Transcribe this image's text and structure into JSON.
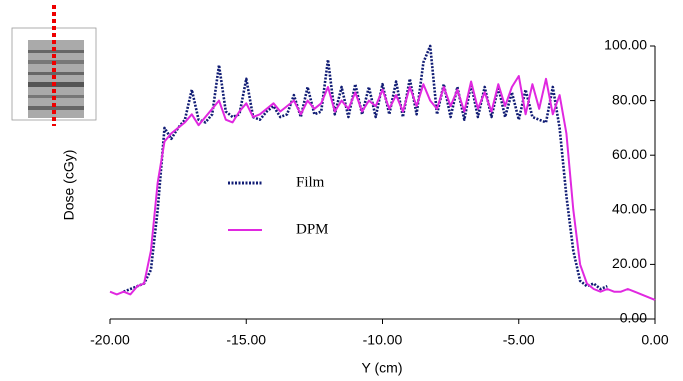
{
  "chart_data": {
    "type": "line",
    "x_label": "Y (cm)",
    "y_label": "Dose (cGy)",
    "x": [
      -20,
      -19.75,
      -19.5,
      -19.25,
      -19,
      -18.75,
      -18.5,
      -18.25,
      -18,
      -17.75,
      -17.5,
      -17.25,
      -17,
      -16.75,
      -16.5,
      -16.25,
      -16,
      -15.75,
      -15.5,
      -15.25,
      -15,
      -14.75,
      -14.5,
      -14.25,
      -14,
      -13.75,
      -13.5,
      -13.25,
      -13,
      -12.75,
      -12.5,
      -12.25,
      -12,
      -11.75,
      -11.5,
      -11.25,
      -11,
      -10.75,
      -10.5,
      -10.25,
      -10,
      -9.75,
      -9.5,
      -9.25,
      -9,
      -8.75,
      -8.5,
      -8.25,
      -8,
      -7.75,
      -7.5,
      -7.25,
      -7,
      -6.75,
      -6.5,
      -6.25,
      -6,
      -5.75,
      -5.5,
      -5.25,
      -5,
      -4.75,
      -4.5,
      -4.25,
      -4,
      -3.75,
      -3.5,
      -3.25,
      -3,
      -2.75,
      -2.5,
      -2.25,
      -2,
      -1.75,
      -1.5,
      -1.25,
      -1,
      -0.75,
      -0.5,
      -0.25,
      0
    ],
    "series": [
      {
        "name": "Film",
        "color": "#101c74",
        "dash": true,
        "values": [
          null,
          null,
          10,
          11,
          12,
          13,
          18,
          40,
          70,
          66,
          70,
          73,
          84,
          73,
          72,
          75,
          93,
          76,
          74,
          75,
          88,
          74,
          73,
          76,
          78,
          74,
          75,
          82,
          74,
          85,
          75,
          76,
          95,
          75,
          85,
          74,
          86,
          75,
          85,
          74,
          86,
          75,
          87,
          74,
          88,
          75,
          94,
          100,
          75,
          86,
          74,
          85,
          73,
          86,
          74,
          85,
          74,
          85,
          74,
          83,
          73,
          84,
          74,
          73,
          72,
          85,
          70,
          45,
          25,
          14,
          12,
          13,
          11,
          12,
          null,
          null,
          null,
          null,
          null,
          null,
          null
        ]
      },
      {
        "name": "DPM",
        "color": "#e028e0",
        "dash": false,
        "values": [
          10,
          9,
          10,
          9,
          12,
          13,
          25,
          50,
          65,
          68,
          70,
          72,
          75,
          71,
          74,
          77,
          80,
          73,
          72,
          76,
          79,
          74,
          75,
          77,
          79,
          76,
          78,
          80,
          75,
          80,
          77,
          79,
          85,
          76,
          80,
          77,
          83,
          76,
          80,
          78,
          84,
          77,
          82,
          76,
          85,
          78,
          86,
          80,
          77,
          85,
          78,
          84,
          76,
          87,
          77,
          83,
          76,
          86,
          78,
          85,
          89,
          75,
          86,
          77,
          88,
          75,
          82,
          68,
          40,
          20,
          13,
          11,
          10,
          11,
          10,
          10,
          11,
          10,
          9,
          8,
          7
        ]
      }
    ],
    "xlim": [
      -20,
      0
    ],
    "ylim": [
      0,
      100
    ],
    "xticks": [
      {
        "value": -20,
        "label": "-20.00"
      },
      {
        "value": -15,
        "label": "-15.00"
      },
      {
        "value": -10,
        "label": "-10.00"
      },
      {
        "value": -5,
        "label": "-5.00"
      },
      {
        "value": 0,
        "label": "0.00"
      }
    ],
    "yticks": [
      {
        "value": 0,
        "label": "0.00"
      },
      {
        "value": 20,
        "label": "20.00"
      },
      {
        "value": 40,
        "label": "40.00"
      },
      {
        "value": 60,
        "label": "60.00"
      },
      {
        "value": 80,
        "label": "80.00"
      },
      {
        "value": 100,
        "label": "100.00"
      }
    ]
  }
}
